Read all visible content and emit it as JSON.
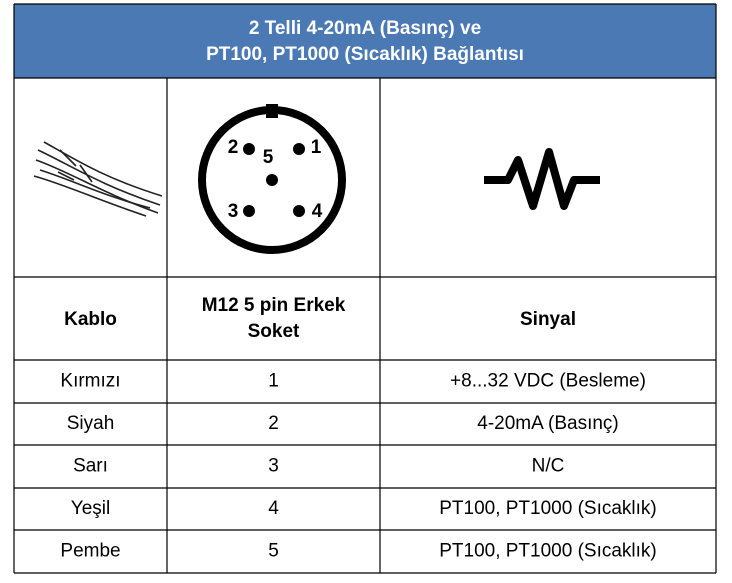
{
  "header": {
    "title_lines": [
      "2 Telli 4-20mA (Basınç) ve",
      "PT100, PT1000 (Sıcaklık) Bağlantısı"
    ]
  },
  "connector": {
    "pins": [
      "1",
      "2",
      "3",
      "4",
      "5"
    ]
  },
  "table": {
    "columns": [
      "Kablo",
      "M12 5 pin Erkek Soket",
      "Sinyal"
    ],
    "rows": [
      [
        "Kırmızı",
        1,
        "+8...32 VDC (Besleme)"
      ],
      [
        "Siyah",
        2,
        "4-20mA (Basınç)"
      ],
      [
        "Sarı",
        3,
        "N/C"
      ],
      [
        "Yeşil",
        4,
        "PT100, PT1000 (Sıcaklık)"
      ],
      [
        "Pembe",
        5,
        "PT100, PT1000 (Sıcaklık)"
      ]
    ]
  }
}
